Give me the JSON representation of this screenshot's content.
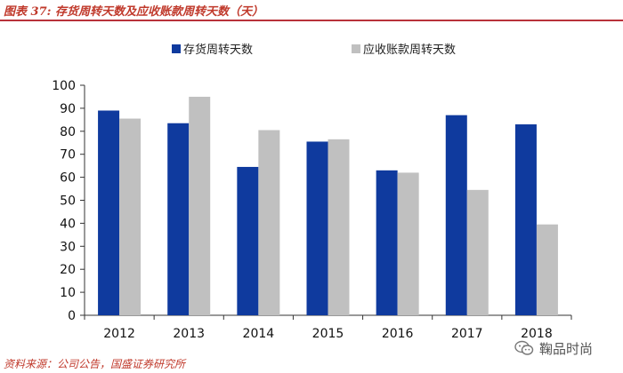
{
  "header": {
    "title": "图表 37: 存货周转天数及应收账款周转天数（天）"
  },
  "footer": {
    "source": "资料来源：公司公告，国盛证券研究所"
  },
  "watermark": {
    "icon": "wechat-icon",
    "text": "鞠品时尚"
  },
  "chart_data": {
    "type": "bar",
    "categories": [
      "2012",
      "2013",
      "2014",
      "2015",
      "2016",
      "2017",
      "2018"
    ],
    "series": [
      {
        "name": "存货周转天数",
        "color": "#0f3a9e",
        "values": [
          89,
          83.5,
          64.5,
          75.5,
          63,
          87,
          83
        ]
      },
      {
        "name": "应收账款周转天数",
        "color": "#c0c0c0",
        "values": [
          85.5,
          95,
          80.5,
          76.5,
          62,
          54.5,
          39.5
        ]
      }
    ],
    "yticks": [
      0,
      10,
      20,
      30,
      40,
      50,
      60,
      70,
      80,
      90,
      100
    ],
    "ylim": [
      0,
      100
    ],
    "legend_position": "top",
    "grid": false
  }
}
